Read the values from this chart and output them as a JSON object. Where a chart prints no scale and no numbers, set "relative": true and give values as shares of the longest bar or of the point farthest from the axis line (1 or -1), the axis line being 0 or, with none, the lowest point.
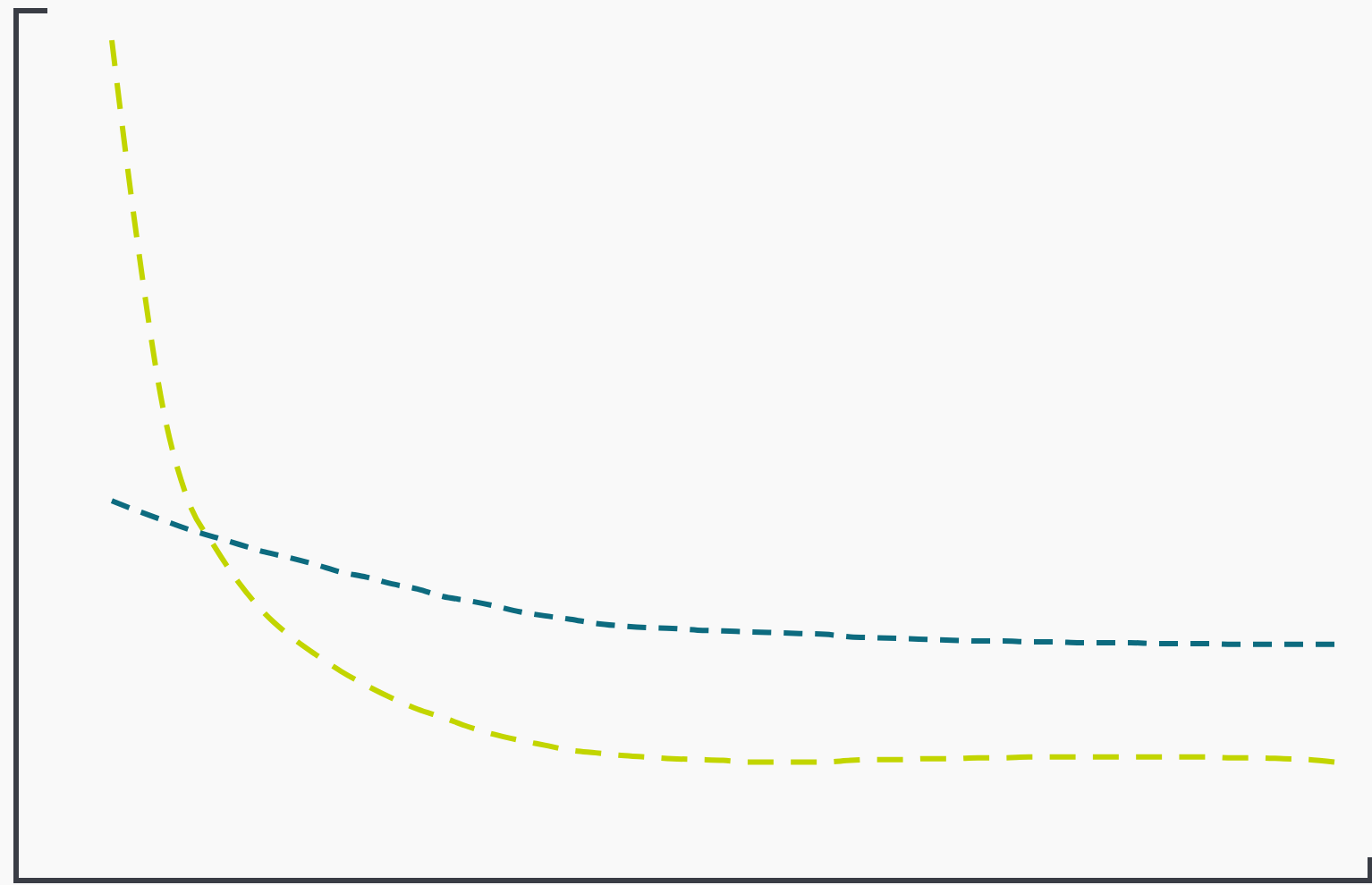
{
  "chart_data": {
    "type": "line",
    "relative": true,
    "line_style": "dashed",
    "marker": "none",
    "categories": [
      null,
      null,
      null,
      null,
      null,
      null,
      null,
      null,
      null,
      null,
      null,
      null,
      null,
      null,
      null,
      null,
      null,
      null,
      null,
      null,
      null,
      null,
      null,
      null,
      null,
      null,
      null,
      null,
      null,
      null,
      null,
      null,
      null,
      null,
      null,
      null,
      null,
      null,
      null,
      null,
      null,
      null,
      null,
      null,
      null,
      null,
      null,
      null,
      null
    ],
    "series": [
      {
        "color": "#c2d500",
        "values": [
          1.0,
          0.761,
          0.564,
          0.452,
          0.399,
          0.354,
          0.318,
          0.291,
          0.269,
          0.249,
          0.232,
          0.217,
          0.204,
          0.194,
          0.183,
          0.174,
          0.167,
          0.161,
          0.155,
          0.152,
          0.149,
          0.147,
          0.145,
          0.144,
          0.143,
          0.141,
          0.141,
          0.141,
          0.141,
          0.143,
          0.144,
          0.144,
          0.145,
          0.145,
          0.146,
          0.146,
          0.147,
          0.147,
          0.147,
          0.147,
          0.147,
          0.147,
          0.147,
          0.147,
          0.146,
          0.146,
          0.145,
          0.144,
          0.141
        ]
      },
      {
        "color": "#0d6b7f",
        "values": [
          0.452,
          0.44,
          0.429,
          0.418,
          0.409,
          0.4,
          0.391,
          0.384,
          0.376,
          0.367,
          0.361,
          0.353,
          0.347,
          0.338,
          0.333,
          0.327,
          0.32,
          0.315,
          0.311,
          0.306,
          0.303,
          0.301,
          0.3,
          0.298,
          0.297,
          0.296,
          0.295,
          0.294,
          0.293,
          0.29,
          0.289,
          0.288,
          0.287,
          0.286,
          0.285,
          0.285,
          0.284,
          0.284,
          0.283,
          0.283,
          0.283,
          0.282,
          0.282,
          0.282,
          0.281,
          0.281,
          0.281,
          0.281,
          0.281
        ]
      }
    ]
  }
}
